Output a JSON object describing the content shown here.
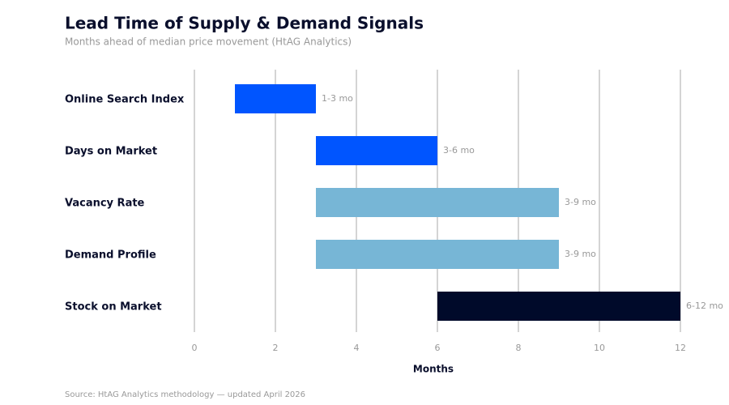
{
  "chart_data": {
    "type": "bar",
    "title": "Lead Time of Supply & Demand Signals",
    "subtitle": "Months ahead of median price movement (HtAG Analytics)",
    "categories": [
      "Online Search Index",
      "Days on Market",
      "Vacancy Rate",
      "Demand Profile",
      "Stock on Market"
    ],
    "starts": [
      1,
      3,
      3,
      3,
      6
    ],
    "ends": [
      3,
      6,
      9,
      9,
      12
    ],
    "value_labels": [
      "1-3 mo",
      "3-6 mo",
      "3-9 mo",
      "3-9 mo",
      "6-12 mo"
    ],
    "colors": [
      "#0055ff",
      "#0055ff",
      "#77b6d6",
      "#77b6d6",
      "#000a2a"
    ],
    "xlim": [
      0,
      12
    ],
    "xticks": [
      0,
      2,
      4,
      6,
      8,
      10,
      12
    ],
    "xlabel": "Months",
    "grid": true,
    "source": "Source: HtAG Analytics methodology — updated April 2026"
  }
}
